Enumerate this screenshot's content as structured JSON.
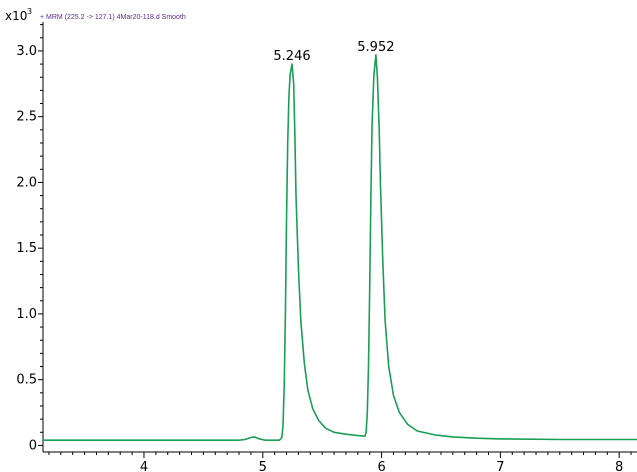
{
  "chart_data": {
    "type": "line",
    "title": "+ MRM (225.2 -> 127.1) 4Mar20-118.d  Smooth",
    "y_scale_label": "x10",
    "y_scale_exponent": "3",
    "xlim": [
      3.15,
      8.15
    ],
    "ylim": [
      -0.05,
      3.22
    ],
    "x_ticks": [
      4,
      5,
      6,
      7,
      8
    ],
    "x_tick_labels": [
      "4",
      "5",
      "6",
      "7",
      "8"
    ],
    "y_ticks": [
      0,
      0.5,
      1.0,
      1.5,
      2.0,
      2.5,
      3.0
    ],
    "y_tick_labels": [
      "0",
      "0.5",
      "1.0",
      "1.5",
      "2.0",
      "2.5",
      "3.0"
    ],
    "xlabel": "",
    "ylabel": "",
    "line_color": "#1a9e55",
    "annotations": [
      {
        "x": 5.246,
        "y": 2.9,
        "text": "5.246"
      },
      {
        "x": 5.952,
        "y": 2.97,
        "text": "5.952"
      }
    ],
    "series": [
      {
        "values": [
          [
            3.15,
            0.04
          ],
          [
            4.8,
            0.04
          ],
          [
            4.85,
            0.045
          ],
          [
            4.9,
            0.06
          ],
          [
            4.93,
            0.065
          ],
          [
            4.97,
            0.05
          ],
          [
            5.02,
            0.04
          ],
          [
            5.14,
            0.04
          ],
          [
            5.16,
            0.06
          ],
          [
            5.17,
            0.15
          ],
          [
            5.18,
            0.45
          ],
          [
            5.19,
            1.0
          ],
          [
            5.2,
            1.7
          ],
          [
            5.21,
            2.3
          ],
          [
            5.22,
            2.65
          ],
          [
            5.23,
            2.82
          ],
          [
            5.246,
            2.9
          ],
          [
            5.26,
            2.75
          ],
          [
            5.27,
            2.35
          ],
          [
            5.28,
            1.9
          ],
          [
            5.3,
            1.35
          ],
          [
            5.32,
            0.95
          ],
          [
            5.35,
            0.62
          ],
          [
            5.38,
            0.42
          ],
          [
            5.42,
            0.28
          ],
          [
            5.47,
            0.19
          ],
          [
            5.53,
            0.13
          ],
          [
            5.6,
            0.1
          ],
          [
            5.7,
            0.085
          ],
          [
            5.8,
            0.075
          ],
          [
            5.86,
            0.07
          ],
          [
            5.87,
            0.1
          ],
          [
            5.88,
            0.25
          ],
          [
            5.89,
            0.6
          ],
          [
            5.9,
            1.2
          ],
          [
            5.91,
            1.9
          ],
          [
            5.92,
            2.45
          ],
          [
            5.935,
            2.82
          ],
          [
            5.952,
            2.97
          ],
          [
            5.965,
            2.8
          ],
          [
            5.98,
            2.4
          ],
          [
            5.99,
            2.0
          ],
          [
            6.01,
            1.4
          ],
          [
            6.03,
            0.95
          ],
          [
            6.06,
            0.6
          ],
          [
            6.1,
            0.38
          ],
          [
            6.15,
            0.25
          ],
          [
            6.22,
            0.16
          ],
          [
            6.3,
            0.11
          ],
          [
            6.45,
            0.08
          ],
          [
            6.6,
            0.065
          ],
          [
            6.8,
            0.055
          ],
          [
            7.0,
            0.05
          ],
          [
            7.5,
            0.045
          ],
          [
            8.15,
            0.045
          ]
        ]
      }
    ]
  }
}
